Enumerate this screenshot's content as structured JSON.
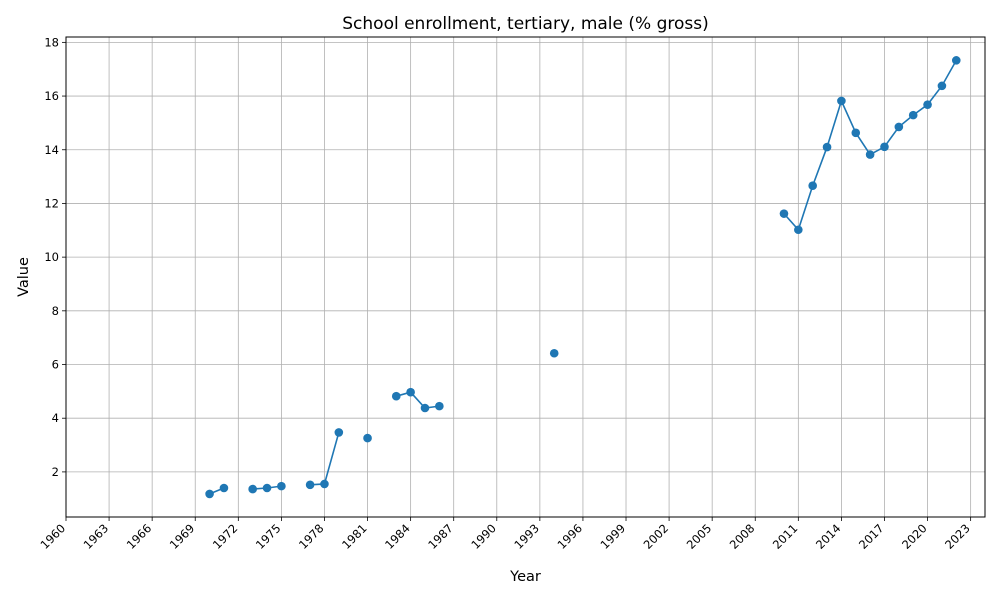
{
  "chart_data": {
    "type": "line",
    "title": "School enrollment, tertiary, male (% gross)",
    "xlabel": "Year",
    "ylabel": "Value",
    "xlim": [
      1960,
      2024
    ],
    "ylim": [
      0.32,
      18.2
    ],
    "x_ticks": [
      "1960",
      "1963",
      "1966",
      "1969",
      "1972",
      "1975",
      "1978",
      "1981",
      "1984",
      "1987",
      "1990",
      "1993",
      "1996",
      "1999",
      "2002",
      "2005",
      "2008",
      "2011",
      "2014",
      "2017",
      "2020",
      "2023"
    ],
    "y_ticks": [
      "2",
      "4",
      "6",
      "8",
      "10",
      "12",
      "14",
      "16",
      "18"
    ],
    "grid": true,
    "color": "#1f77b4",
    "series": [
      {
        "points": [
          {
            "x": 1970,
            "y": 1.18
          },
          {
            "x": 1971,
            "y": 1.4
          },
          {
            "x": 1972,
            "y": null
          },
          {
            "x": 1973,
            "y": 1.36
          },
          {
            "x": 1974,
            "y": 1.4
          },
          {
            "x": 1975,
            "y": 1.47
          },
          {
            "x": 1976,
            "y": null
          },
          {
            "x": 1977,
            "y": 1.52
          },
          {
            "x": 1978,
            "y": 1.55
          },
          {
            "x": 1979,
            "y": 3.47
          },
          {
            "x": 1980,
            "y": null
          },
          {
            "x": 1981,
            "y": 3.26
          },
          {
            "x": 1982,
            "y": null
          },
          {
            "x": 1983,
            "y": 4.82
          },
          {
            "x": 1984,
            "y": 4.97
          },
          {
            "x": 1985,
            "y": 4.38
          },
          {
            "x": 1986,
            "y": 4.45
          },
          {
            "x": 1987,
            "y": null
          },
          {
            "x": 1994,
            "y": 6.42
          },
          {
            "x": 1995,
            "y": null
          },
          {
            "x": 2010,
            "y": 11.62
          },
          {
            "x": 2011,
            "y": 11.02
          },
          {
            "x": 2012,
            "y": 12.66
          },
          {
            "x": 2013,
            "y": 14.1
          },
          {
            "x": 2014,
            "y": 15.82
          },
          {
            "x": 2015,
            "y": 14.63
          },
          {
            "x": 2016,
            "y": 13.82
          },
          {
            "x": 2017,
            "y": 14.11
          },
          {
            "x": 2018,
            "y": 14.85
          },
          {
            "x": 2019,
            "y": 15.29
          },
          {
            "x": 2020,
            "y": 15.68
          },
          {
            "x": 2021,
            "y": 16.38
          },
          {
            "x": 2022,
            "y": 17.33
          }
        ]
      }
    ]
  }
}
